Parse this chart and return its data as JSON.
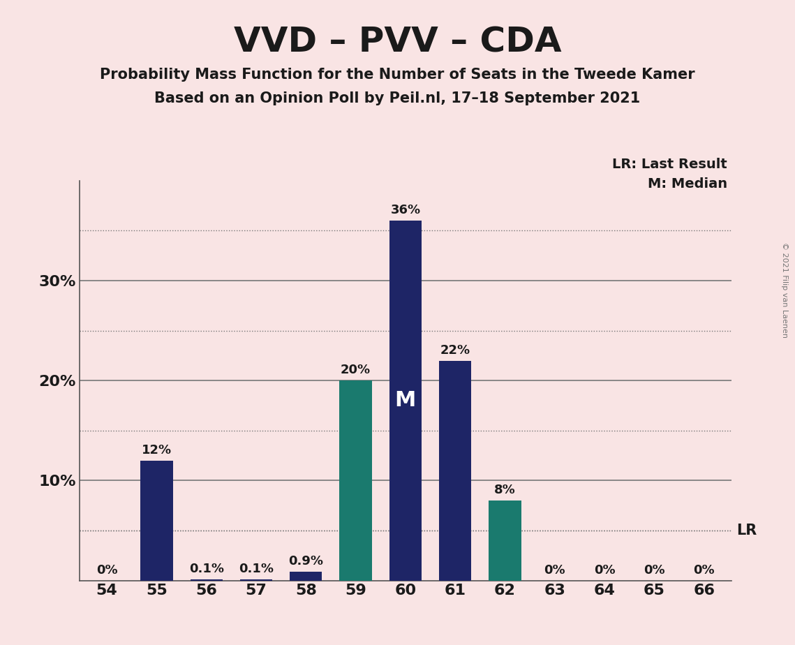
{
  "title": "VVD – PVV – CDA",
  "subtitle1": "Probability Mass Function for the Number of Seats in the Tweede Kamer",
  "subtitle2": "Based on an Opinion Poll by Peil.nl, 17–18 September 2021",
  "copyright": "© 2021 Filip van Laenen",
  "legend_lr": "LR: Last Result",
  "legend_m": "M: Median",
  "background_color": "#f9e4e4",
  "bar_color_navy": "#1e2566",
  "bar_color_teal": "#1a7a6e",
  "categories": [
    54,
    55,
    56,
    57,
    58,
    59,
    60,
    61,
    62,
    63,
    64,
    65,
    66
  ],
  "values": [
    0.0,
    12.0,
    0.1,
    0.1,
    0.9,
    20.0,
    36.0,
    22.0,
    8.0,
    0.0,
    0.0,
    0.0,
    0.0
  ],
  "colors": [
    "navy",
    "navy",
    "navy",
    "navy",
    "navy",
    "teal",
    "navy",
    "navy",
    "teal",
    "navy",
    "navy",
    "navy",
    "navy"
  ],
  "labels": [
    "0%",
    "12%",
    "0.1%",
    "0.1%",
    "0.9%",
    "20%",
    "36%",
    "22%",
    "8%",
    "0%",
    "0%",
    "0%",
    "0%"
  ],
  "median_bar_idx": 6,
  "median_label": "M",
  "lr_value": 5.0,
  "lr_label": "LR",
  "ylim": [
    0,
    40
  ],
  "dotted_yticks": [
    5,
    15,
    25,
    35
  ],
  "solid_yticks": [
    10,
    20,
    30
  ],
  "ytick_display": [
    10,
    20,
    30
  ],
  "ytick_display_labels": [
    "10%",
    "20%",
    "30%"
  ]
}
